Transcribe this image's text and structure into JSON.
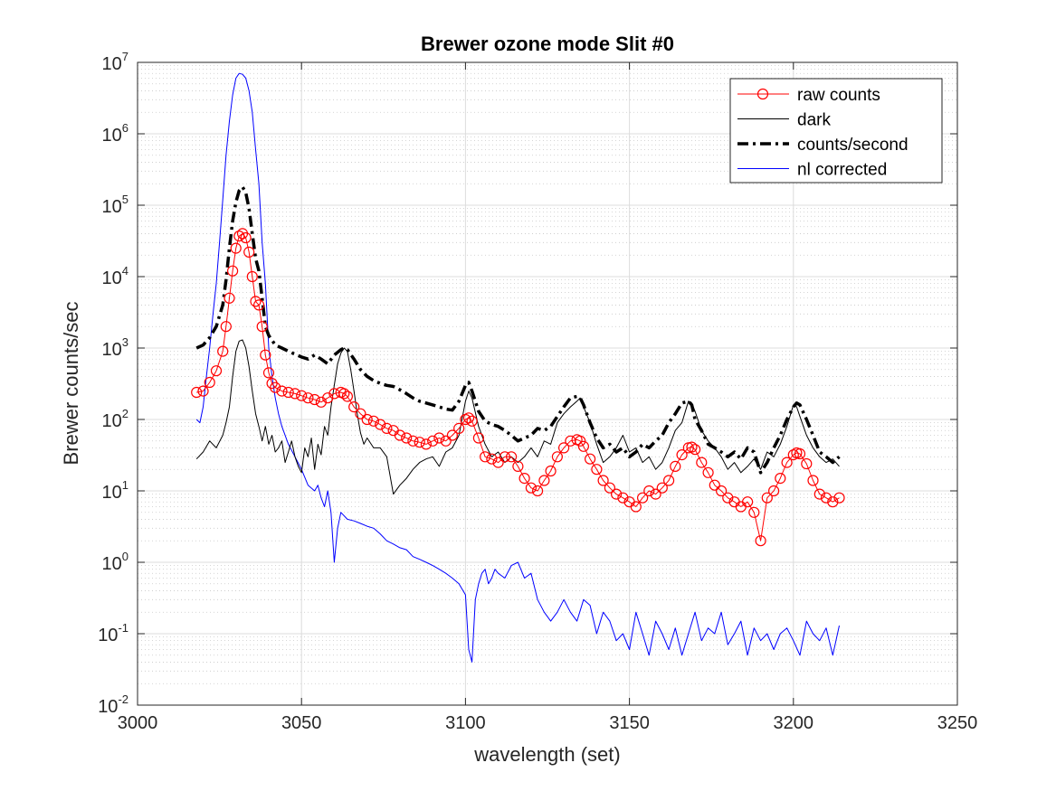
{
  "chart_data": {
    "type": "line",
    "title": "Brewer ozone mode  Slit #0",
    "xlabel": "wavelength (set)",
    "ylabel": "Brewer  counts/sec",
    "xlim": [
      3000,
      3250
    ],
    "ylim": [
      0.01,
      10000000
    ],
    "yscale": "log",
    "grid": true,
    "minor_grid": true,
    "legend_position": "top-right",
    "x_ticks": [
      "3000",
      "3050",
      "3100",
      "3150",
      "3200",
      "3250"
    ],
    "y_ticks": [
      {
        "base": "10",
        "exp": "-2"
      },
      {
        "base": "10",
        "exp": "-1"
      },
      {
        "base": "10",
        "exp": "0"
      },
      {
        "base": "10",
        "exp": "1"
      },
      {
        "base": "10",
        "exp": "2"
      },
      {
        "base": "10",
        "exp": "3"
      },
      {
        "base": "10",
        "exp": "4"
      },
      {
        "base": "10",
        "exp": "5"
      },
      {
        "base": "10",
        "exp": "6"
      },
      {
        "base": "10",
        "exp": "7"
      }
    ],
    "series": [
      {
        "name": "raw counts",
        "color": "#ff0000",
        "line": "solid",
        "marker": "circle",
        "x": [
          3018,
          3020,
          3022,
          3024,
          3026,
          3027,
          3028,
          3029,
          3030,
          3031,
          3032,
          3033,
          3034,
          3035,
          3036,
          3037,
          3038,
          3039,
          3040,
          3041,
          3042,
          3044,
          3046,
          3048,
          3050,
          3052,
          3054,
          3056,
          3058,
          3060,
          3062,
          3063,
          3064,
          3066,
          3068,
          3070,
          3072,
          3074,
          3076,
          3078,
          3080,
          3082,
          3084,
          3086,
          3088,
          3090,
          3092,
          3094,
          3096,
          3098,
          3100,
          3101,
          3102,
          3104,
          3106,
          3108,
          3110,
          3112,
          3114,
          3116,
          3118,
          3120,
          3122,
          3124,
          3126,
          3128,
          3130,
          3132,
          3134,
          3135,
          3136,
          3138,
          3140,
          3142,
          3144,
          3146,
          3148,
          3150,
          3152,
          3154,
          3156,
          3158,
          3160,
          3162,
          3164,
          3166,
          3168,
          3169,
          3170,
          3172,
          3174,
          3176,
          3178,
          3180,
          3182,
          3184,
          3186,
          3188,
          3190,
          3192,
          3194,
          3196,
          3198,
          3200,
          3201,
          3202,
          3204,
          3206,
          3208,
          3210,
          3212,
          3214
        ],
        "y": [
          240,
          250,
          330,
          480,
          900,
          2000,
          5000,
          12000,
          25000,
          37000,
          40000,
          35000,
          22000,
          10000,
          4500,
          4000,
          2000,
          800,
          450,
          320,
          280,
          250,
          240,
          230,
          215,
          200,
          190,
          175,
          200,
          230,
          240,
          230,
          210,
          150,
          120,
          100,
          95,
          85,
          75,
          70,
          60,
          55,
          50,
          48,
          45,
          50,
          55,
          50,
          60,
          75,
          100,
          105,
          95,
          55,
          30,
          28,
          25,
          30,
          30,
          22,
          15,
          11,
          10,
          14,
          19,
          30,
          40,
          50,
          52,
          50,
          42,
          28,
          20,
          14,
          11,
          9,
          8,
          7,
          6,
          8,
          10,
          9,
          11,
          14,
          22,
          32,
          40,
          41,
          38,
          25,
          18,
          12,
          10,
          8,
          7,
          6,
          7,
          5,
          2,
          8,
          10,
          15,
          25,
          32,
          34,
          33,
          24,
          14,
          9,
          8,
          7,
          8
        ]
      },
      {
        "name": "dark",
        "color": "#000000",
        "line": "solid",
        "marker": "none",
        "x": [
          3018,
          3020,
          3022,
          3024,
          3026,
          3027,
          3028,
          3029,
          3030,
          3031,
          3032,
          3033,
          3034,
          3035,
          3036,
          3037,
          3038,
          3039,
          3040,
          3041,
          3042,
          3043,
          3044,
          3045,
          3046,
          3047,
          3048,
          3049,
          3050,
          3051,
          3052,
          3053,
          3054,
          3055,
          3056,
          3057,
          3058,
          3059,
          3060,
          3061,
          3062,
          3063,
          3064,
          3065,
          3066,
          3067,
          3068,
          3069,
          3070,
          3072,
          3074,
          3076,
          3078,
          3080,
          3082,
          3084,
          3086,
          3088,
          3090,
          3092,
          3094,
          3096,
          3098,
          3100,
          3101,
          3102,
          3104,
          3106,
          3108,
          3110,
          3112,
          3114,
          3116,
          3118,
          3120,
          3122,
          3124,
          3126,
          3128,
          3130,
          3132,
          3134,
          3135,
          3136,
          3138,
          3140,
          3142,
          3144,
          3146,
          3148,
          3150,
          3152,
          3154,
          3156,
          3158,
          3160,
          3162,
          3164,
          3166,
          3168,
          3169,
          3170,
          3172,
          3174,
          3176,
          3178,
          3180,
          3182,
          3184,
          3186,
          3188,
          3190,
          3192,
          3194,
          3196,
          3198,
          3200,
          3201,
          3202,
          3204,
          3206,
          3208,
          3210,
          3212,
          3214
        ],
        "y": [
          28,
          35,
          50,
          40,
          60,
          90,
          150,
          400,
          900,
          1250,
          1300,
          1000,
          550,
          250,
          120,
          80,
          50,
          80,
          45,
          60,
          35,
          40,
          50,
          25,
          35,
          50,
          30,
          22,
          18,
          40,
          30,
          55,
          20,
          45,
          32,
          80,
          60,
          150,
          300,
          600,
          850,
          1000,
          900,
          500,
          250,
          120,
          65,
          45,
          55,
          40,
          40,
          30,
          9,
          12,
          15,
          20,
          25,
          28,
          30,
          22,
          35,
          40,
          60,
          180,
          250,
          200,
          80,
          45,
          30,
          35,
          25,
          30,
          25,
          30,
          40,
          30,
          50,
          45,
          90,
          120,
          150,
          180,
          200,
          150,
          90,
          45,
          25,
          30,
          40,
          60,
          35,
          40,
          25,
          30,
          20,
          25,
          40,
          70,
          90,
          180,
          170,
          130,
          70,
          50,
          40,
          30,
          20,
          25,
          18,
          22,
          28,
          20,
          35,
          30,
          45,
          80,
          160,
          150,
          110,
          60,
          40,
          30,
          25,
          28,
          22
        ]
      },
      {
        "name": "counts/second",
        "color": "#000000",
        "line": "dashdot",
        "marker": "none",
        "x": [
          3018,
          3020,
          3022,
          3024,
          3026,
          3027,
          3028,
          3029,
          3030,
          3031,
          3032,
          3033,
          3034,
          3035,
          3036,
          3037,
          3038,
          3039,
          3040,
          3042,
          3044,
          3046,
          3048,
          3050,
          3052,
          3054,
          3056,
          3058,
          3060,
          3062,
          3063,
          3064,
          3066,
          3068,
          3070,
          3072,
          3074,
          3076,
          3078,
          3080,
          3082,
          3084,
          3086,
          3088,
          3090,
          3092,
          3094,
          3096,
          3098,
          3100,
          3101,
          3102,
          3104,
          3106,
          3108,
          3110,
          3112,
          3114,
          3116,
          3118,
          3120,
          3122,
          3124,
          3126,
          3128,
          3130,
          3132,
          3134,
          3135,
          3136,
          3138,
          3140,
          3142,
          3144,
          3146,
          3148,
          3150,
          3152,
          3154,
          3156,
          3158,
          3160,
          3162,
          3164,
          3166,
          3168,
          3169,
          3170,
          3172,
          3174,
          3176,
          3178,
          3180,
          3182,
          3184,
          3186,
          3188,
          3190,
          3192,
          3194,
          3196,
          3198,
          3200,
          3201,
          3202,
          3204,
          3206,
          3208,
          3210,
          3212,
          3214
        ],
        "y": [
          1000,
          1100,
          1400,
          2000,
          4000,
          9000,
          25000,
          60000,
          110000,
          160000,
          180000,
          150000,
          90000,
          40000,
          18000,
          12000,
          5000,
          2000,
          1500,
          1100,
          1000,
          900,
          820,
          750,
          700,
          800,
          700,
          600,
          800,
          950,
          1000,
          950,
          700,
          500,
          400,
          350,
          320,
          300,
          290,
          260,
          230,
          200,
          180,
          170,
          160,
          150,
          140,
          135,
          180,
          300,
          330,
          250,
          130,
          95,
          85,
          80,
          70,
          60,
          50,
          55,
          60,
          75,
          70,
          80,
          110,
          150,
          200,
          210,
          200,
          160,
          90,
          55,
          40,
          45,
          35,
          40,
          30,
          35,
          45,
          40,
          50,
          60,
          90,
          120,
          170,
          180,
          160,
          100,
          70,
          45,
          40,
          35,
          30,
          35,
          28,
          40,
          35,
          18,
          25,
          40,
          60,
          100,
          150,
          170,
          160,
          100,
          60,
          35,
          30,
          25,
          30
        ]
      },
      {
        "name": "nl corrected",
        "color": "#0000ff",
        "line": "solid",
        "marker": "none",
        "x": [
          3018,
          3019,
          3020,
          3021,
          3022,
          3023,
          3024,
          3025,
          3026,
          3027,
          3028,
          3029,
          3030,
          3031,
          3032,
          3033,
          3034,
          3035,
          3036,
          3037,
          3038,
          3039,
          3040,
          3041,
          3042,
          3043,
          3044,
          3046,
          3048,
          3050,
          3052,
          3054,
          3055,
          3056,
          3057,
          3058,
          3059,
          3060,
          3061,
          3062,
          3064,
          3066,
          3068,
          3070,
          3072,
          3074,
          3076,
          3078,
          3080,
          3082,
          3084,
          3086,
          3088,
          3090,
          3092,
          3094,
          3096,
          3098,
          3100,
          3101,
          3102,
          3103,
          3104,
          3105,
          3106,
          3107,
          3108,
          3109,
          3110,
          3112,
          3114,
          3116,
          3118,
          3120,
          3122,
          3124,
          3126,
          3128,
          3130,
          3132,
          3134,
          3136,
          3138,
          3140,
          3142,
          3144,
          3146,
          3148,
          3150,
          3152,
          3154,
          3156,
          3158,
          3160,
          3162,
          3164,
          3166,
          3168,
          3170,
          3172,
          3174,
          3176,
          3178,
          3180,
          3182,
          3184,
          3186,
          3188,
          3190,
          3192,
          3194,
          3196,
          3198,
          3200,
          3202,
          3204,
          3206,
          3208,
          3210,
          3212,
          3214
        ],
        "y": [
          100,
          90,
          150,
          400,
          1000,
          3000,
          8000,
          30000,
          120000,
          500000,
          1500000,
          3500000,
          6000000,
          7000000,
          6800000,
          6000000,
          4000000,
          2000000,
          600000,
          200000,
          30000,
          8000,
          1000,
          400,
          200,
          120,
          80,
          45,
          30,
          20,
          12,
          10,
          12,
          8,
          6,
          10,
          5,
          1,
          3,
          5,
          4,
          3.8,
          3.5,
          3.2,
          3,
          2.5,
          2,
          1.8,
          1.6,
          1.5,
          1.2,
          1.1,
          1,
          0.9,
          0.8,
          0.7,
          0.6,
          0.5,
          0.35,
          0.06,
          0.04,
          0.3,
          0.5,
          0.7,
          0.8,
          0.5,
          0.6,
          0.8,
          0.7,
          0.6,
          0.9,
          1,
          0.6,
          0.7,
          0.3,
          0.2,
          0.15,
          0.2,
          0.3,
          0.2,
          0.15,
          0.3,
          0.25,
          0.1,
          0.2,
          0.15,
          0.08,
          0.1,
          0.06,
          0.2,
          0.1,
          0.05,
          0.15,
          0.1,
          0.06,
          0.12,
          0.05,
          0.1,
          0.2,
          0.08,
          0.12,
          0.1,
          0.2,
          0.07,
          0.1,
          0.15,
          0.05,
          0.12,
          0.08,
          0.1,
          0.06,
          0.1,
          0.12,
          0.08,
          0.05,
          0.15,
          0.1,
          0.08,
          0.12,
          0.05,
          0.13
        ]
      }
    ]
  }
}
